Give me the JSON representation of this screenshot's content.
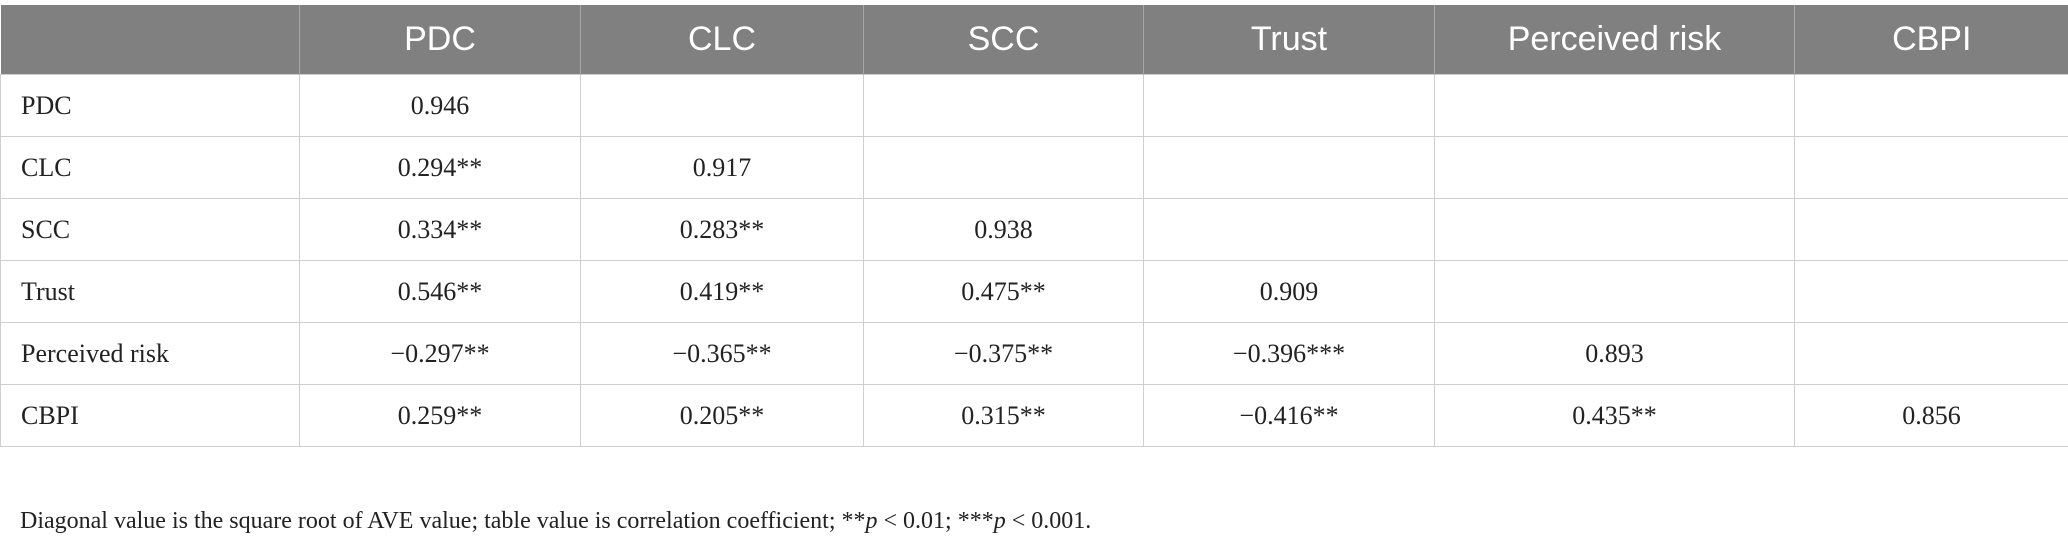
{
  "table": {
    "header": [
      "PDC",
      "CLC",
      "SCC",
      "Trust",
      "Perceived risk",
      "CBPI"
    ],
    "rows": [
      {
        "label": "PDC",
        "cells": [
          "0.946"
        ]
      },
      {
        "label": "CLC",
        "cells": [
          "0.294**",
          "0.917"
        ]
      },
      {
        "label": "SCC",
        "cells": [
          "0.334**",
          "0.283**",
          "0.938"
        ]
      },
      {
        "label": "Trust",
        "cells": [
          "0.546**",
          "0.419**",
          "0.475**",
          "0.909"
        ]
      },
      {
        "label": "Perceived risk",
        "cells": [
          "−0.297**",
          "−0.365**",
          "−0.375**",
          "−0.396***",
          "0.893"
        ]
      },
      {
        "label": "CBPI",
        "cells": [
          "0.259**",
          "0.205**",
          "0.315**",
          "−0.416**",
          "0.435**",
          "0.856"
        ]
      }
    ]
  },
  "footnote": [
    "Diagonal value is the square root of AVE value; table value is correlation coefficient; **",
    "p",
    " < 0.01; ***",
    "p",
    " < 0.001."
  ]
}
